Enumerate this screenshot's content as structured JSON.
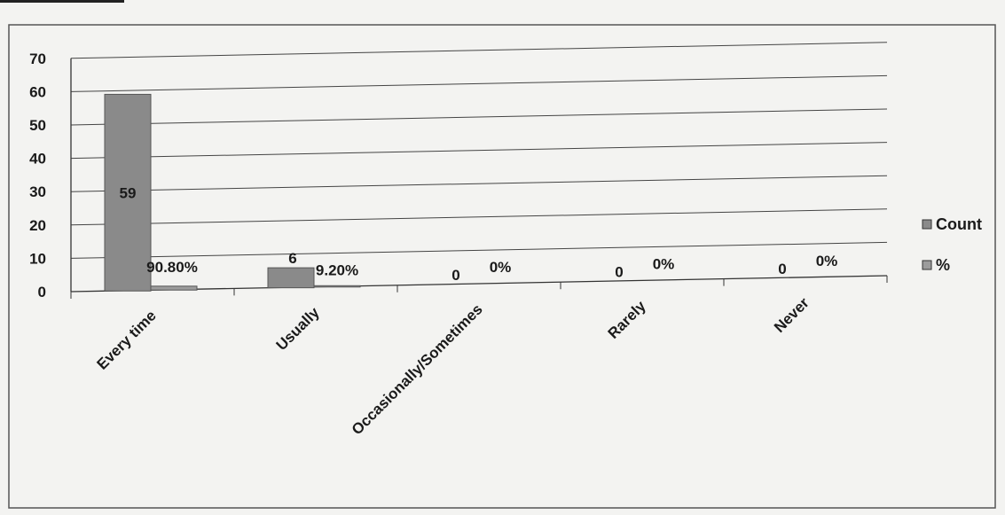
{
  "chart_data": {
    "type": "bar",
    "categories": [
      "Every time",
      "Usually",
      "Occasionally/Sometimes",
      "Rarely",
      "Never"
    ],
    "series": [
      {
        "name": "Count",
        "values": [
          59,
          6,
          0,
          0,
          0
        ],
        "labels": [
          "59",
          "6",
          "0",
          "0",
          "0"
        ],
        "color": "#8a8a8a"
      },
      {
        "name": "%",
        "values": [
          0.908,
          0.092,
          0,
          0,
          0
        ],
        "labels": [
          "90.80%",
          "9.20%",
          "0%",
          "0%",
          "0%"
        ],
        "color": "#9c9c9c"
      }
    ],
    "y_ticks": [
      "0",
      "10",
      "20",
      "30",
      "40",
      "50",
      "60",
      "70"
    ],
    "ylim": [
      0,
      70
    ],
    "grid": true,
    "legend_position": "right"
  }
}
